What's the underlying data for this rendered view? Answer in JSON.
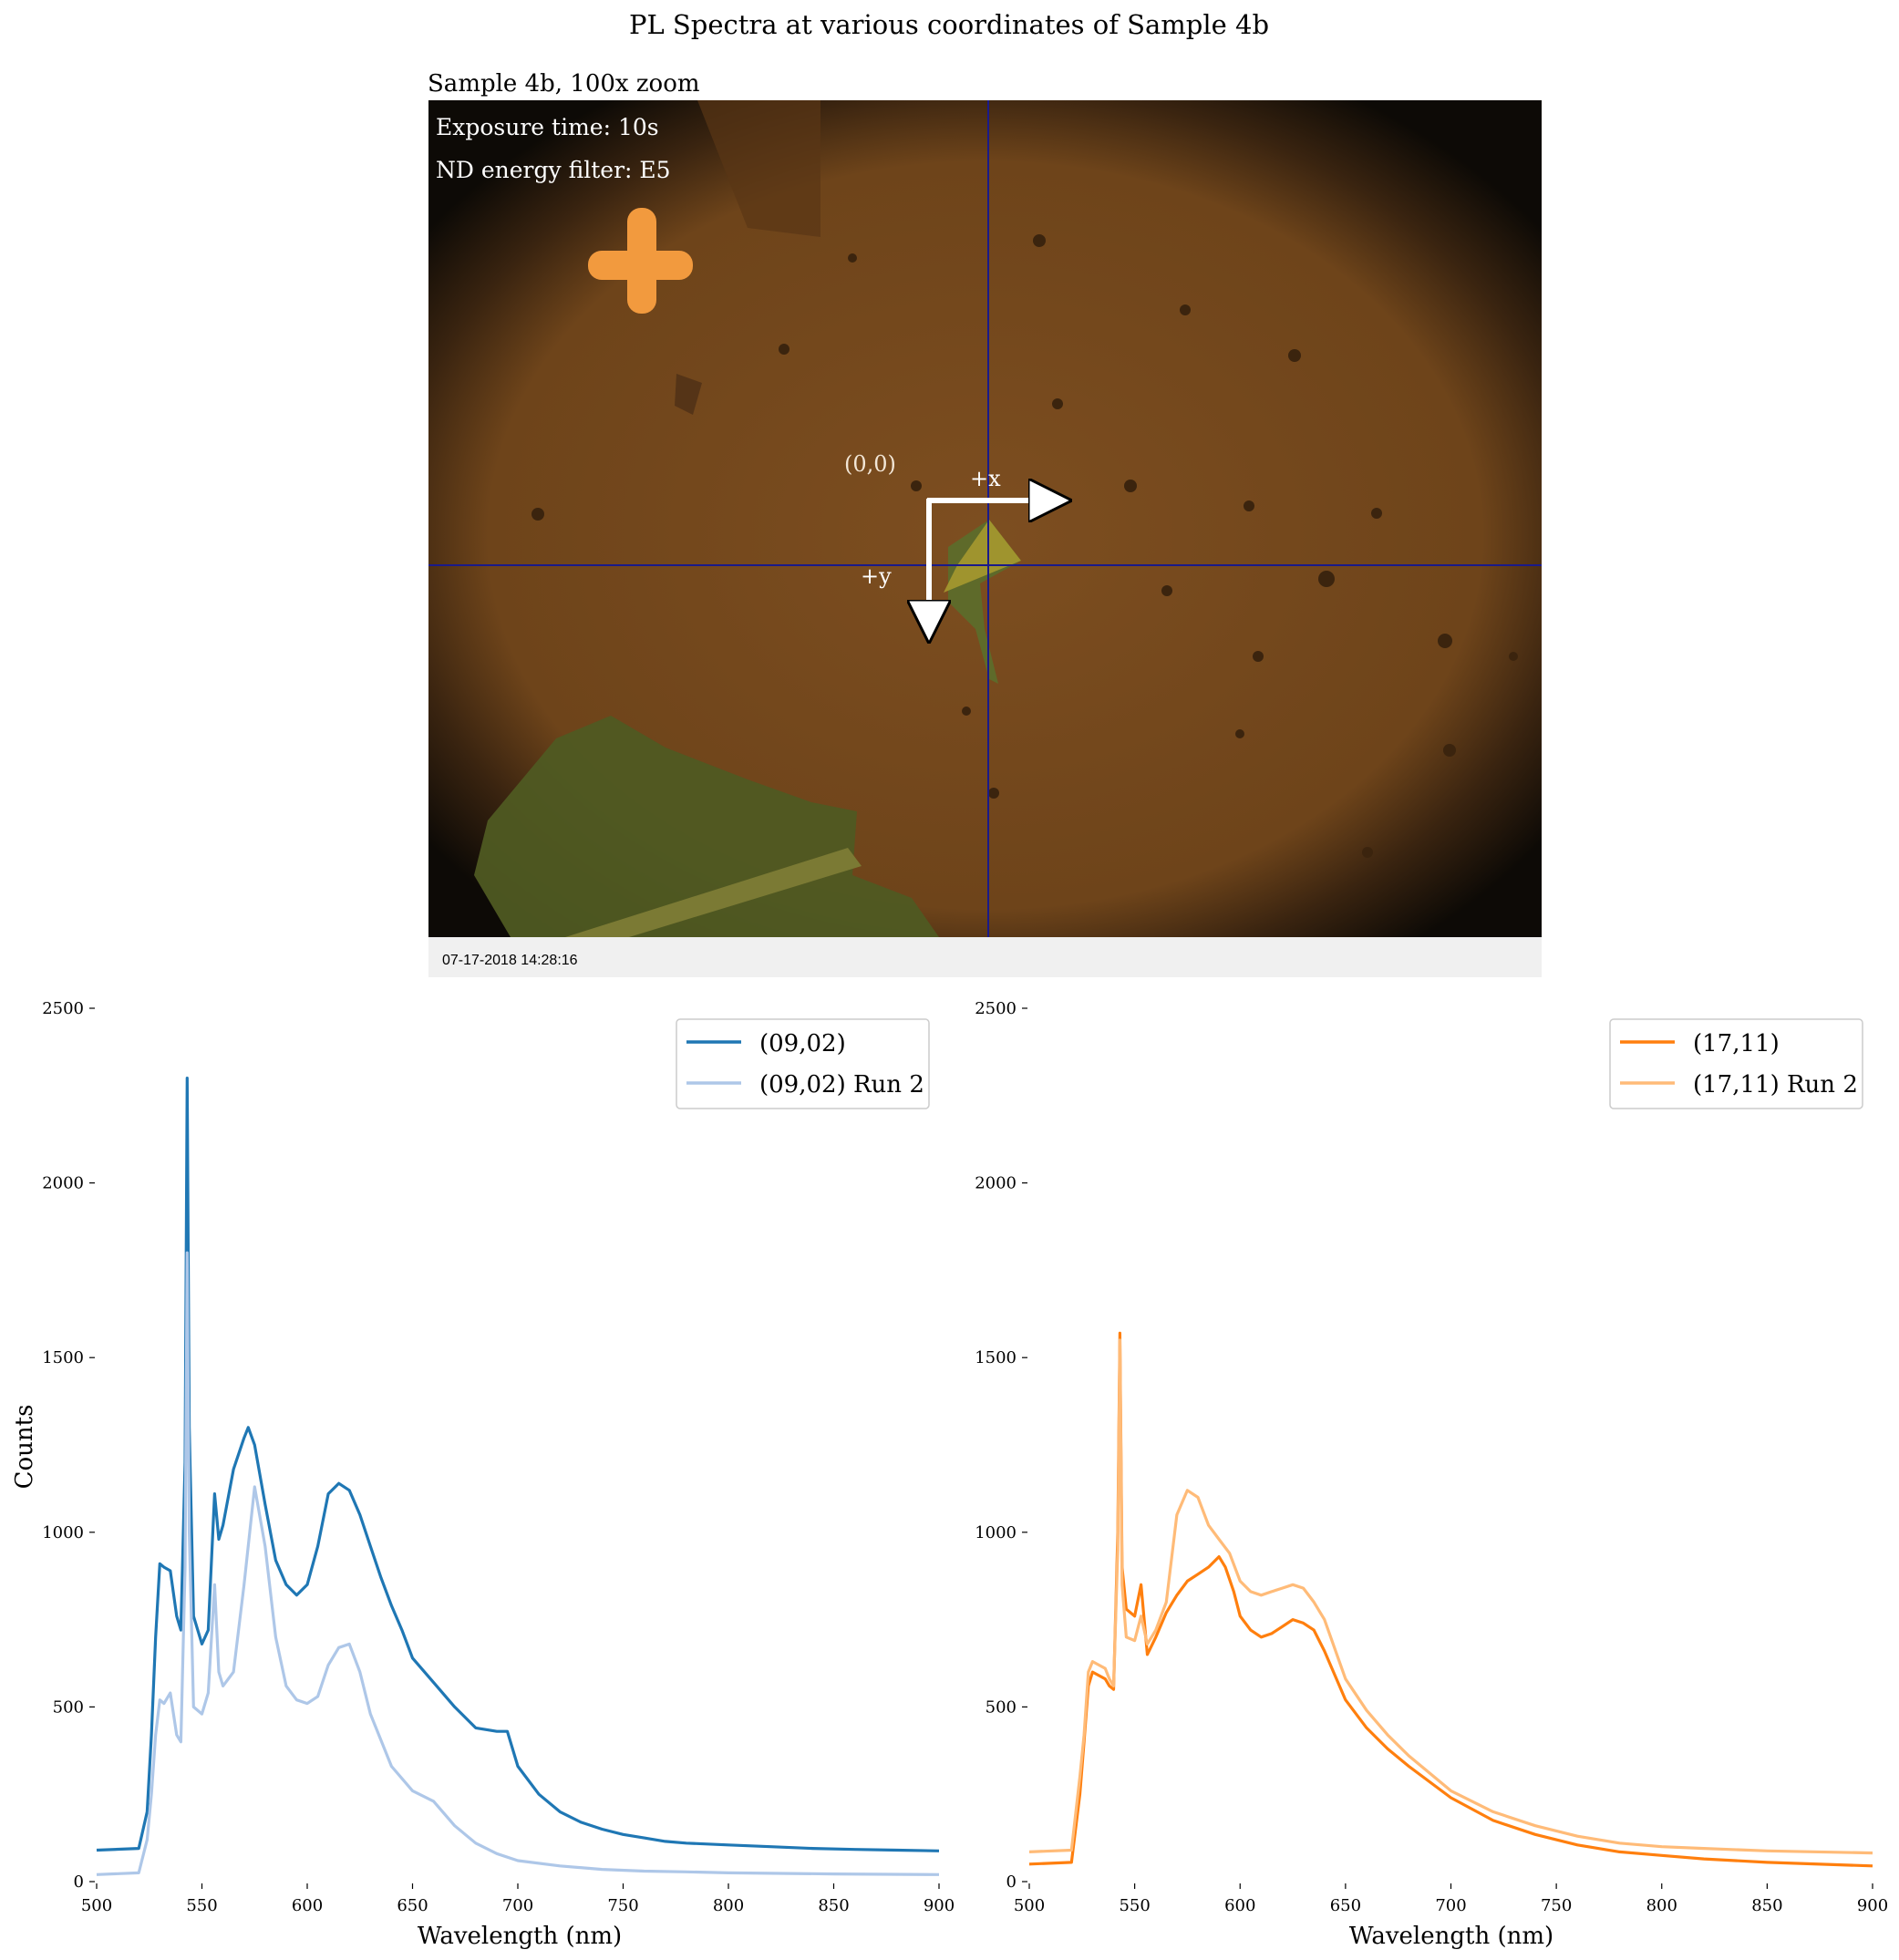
{
  "figure": {
    "title": "PL Spectra at various coordinates of Sample 4b"
  },
  "micrograph": {
    "title": "Sample 4b, 100x zoom",
    "annotations": {
      "exposure": "Exposure time: 10s",
      "nd_filter": "ND energy filter: E5",
      "origin_label": "(0,0)",
      "x_axis_label": "+x",
      "y_axis_label": "+y"
    },
    "timestamp": "07-17-2018 14:28:16",
    "colors": {
      "substrate": "#7a4a1c",
      "vignette": "#0d0a06",
      "marker": "#f29a3e",
      "flake": "#6b6a2a",
      "crosshair": "#1a1a8a"
    }
  },
  "chart_data": [
    {
      "type": "line",
      "xlabel": "Wavelength (nm)",
      "ylabel": "Counts",
      "xlim": [
        500,
        900
      ],
      "ylim": [
        0,
        2500
      ],
      "xticks": [
        500,
        550,
        600,
        650,
        700,
        750,
        800,
        850,
        900
      ],
      "yticks": [
        0,
        500,
        1000,
        1500,
        2000,
        2500
      ],
      "grid": false,
      "legend": "top-right",
      "series": [
        {
          "name": "(09,02)",
          "color": "#1f77b4",
          "x": [
            500,
            520,
            524,
            526,
            528,
            530,
            532,
            535,
            538,
            540,
            542,
            543,
            544,
            546,
            550,
            553,
            556,
            558,
            560,
            565,
            570,
            572,
            575,
            580,
            585,
            590,
            595,
            600,
            605,
            610,
            615,
            620,
            625,
            630,
            635,
            640,
            645,
            650,
            660,
            670,
            680,
            690,
            695,
            700,
            710,
            720,
            730,
            740,
            750,
            760,
            770,
            780,
            800,
            820,
            840,
            860,
            880,
            900
          ],
          "y": [
            90,
            95,
            200,
            420,
            700,
            910,
            900,
            890,
            760,
            720,
            1200,
            2300,
            1300,
            760,
            680,
            720,
            1110,
            980,
            1020,
            1180,
            1270,
            1300,
            1250,
            1080,
            920,
            850,
            820,
            850,
            960,
            1110,
            1140,
            1120,
            1050,
            960,
            870,
            790,
            720,
            640,
            570,
            500,
            440,
            430,
            430,
            330,
            250,
            200,
            170,
            150,
            135,
            125,
            115,
            110,
            105,
            100,
            95,
            92,
            90,
            88
          ]
        },
        {
          "name": "(09,02) Run 2",
          "color": "#aec7e8",
          "x": [
            500,
            520,
            524,
            526,
            528,
            530,
            532,
            535,
            538,
            540,
            542,
            543,
            544,
            546,
            550,
            553,
            556,
            558,
            560,
            565,
            570,
            575,
            580,
            585,
            590,
            595,
            600,
            605,
            610,
            615,
            620,
            625,
            630,
            640,
            650,
            660,
            670,
            680,
            690,
            700,
            720,
            740,
            760,
            780,
            800,
            850,
            900
          ],
          "y": [
            20,
            25,
            120,
            250,
            420,
            520,
            510,
            540,
            420,
            400,
            900,
            1800,
            1000,
            500,
            480,
            540,
            850,
            600,
            560,
            600,
            850,
            1130,
            960,
            700,
            560,
            520,
            510,
            530,
            620,
            670,
            680,
            600,
            480,
            330,
            260,
            230,
            160,
            110,
            80,
            60,
            45,
            35,
            30,
            28,
            25,
            22,
            20
          ]
        }
      ]
    },
    {
      "type": "line",
      "xlabel": "Wavelength (nm)",
      "ylabel": "",
      "xlim": [
        500,
        900
      ],
      "ylim": [
        0,
        2500
      ],
      "xticks": [
        500,
        550,
        600,
        650,
        700,
        750,
        800,
        850,
        900
      ],
      "yticks": [
        0,
        500,
        1000,
        1500,
        2000,
        2500
      ],
      "grid": false,
      "legend": "top-right",
      "series": [
        {
          "name": "(17,11)",
          "color": "#ff7f0e",
          "x": [
            500,
            520,
            524,
            526,
            528,
            530,
            533,
            536,
            538,
            540,
            542,
            543,
            544,
            546,
            550,
            553,
            556,
            560,
            565,
            570,
            575,
            580,
            585,
            590,
            593,
            597,
            600,
            605,
            610,
            615,
            620,
            625,
            630,
            635,
            640,
            650,
            660,
            670,
            680,
            700,
            720,
            740,
            760,
            780,
            800,
            820,
            850,
            900
          ],
          "y": [
            50,
            55,
            250,
            400,
            560,
            600,
            590,
            580,
            560,
            550,
            1000,
            1570,
            900,
            780,
            760,
            850,
            650,
            700,
            770,
            820,
            860,
            880,
            900,
            930,
            900,
            830,
            760,
            720,
            700,
            710,
            730,
            750,
            740,
            720,
            660,
            520,
            440,
            380,
            330,
            240,
            175,
            135,
            105,
            85,
            75,
            65,
            55,
            45
          ]
        },
        {
          "name": "(17,11) Run 2",
          "color": "#ffbb78",
          "x": [
            500,
            520,
            524,
            526,
            528,
            530,
            533,
            536,
            538,
            540,
            542,
            543,
            544,
            546,
            550,
            553,
            556,
            560,
            565,
            570,
            575,
            580,
            585,
            590,
            595,
            600,
            605,
            610,
            615,
            620,
            625,
            630,
            635,
            640,
            650,
            660,
            670,
            680,
            700,
            720,
            740,
            760,
            780,
            800,
            820,
            850,
            900
          ],
          "y": [
            85,
            90,
            300,
            420,
            600,
            630,
            620,
            610,
            580,
            560,
            950,
            1550,
            850,
            700,
            690,
            760,
            680,
            720,
            800,
            1050,
            1120,
            1100,
            1020,
            980,
            940,
            860,
            830,
            820,
            830,
            840,
            850,
            840,
            800,
            750,
            580,
            490,
            420,
            360,
            260,
            200,
            160,
            130,
            110,
            100,
            95,
            88,
            82
          ]
        }
      ]
    }
  ]
}
